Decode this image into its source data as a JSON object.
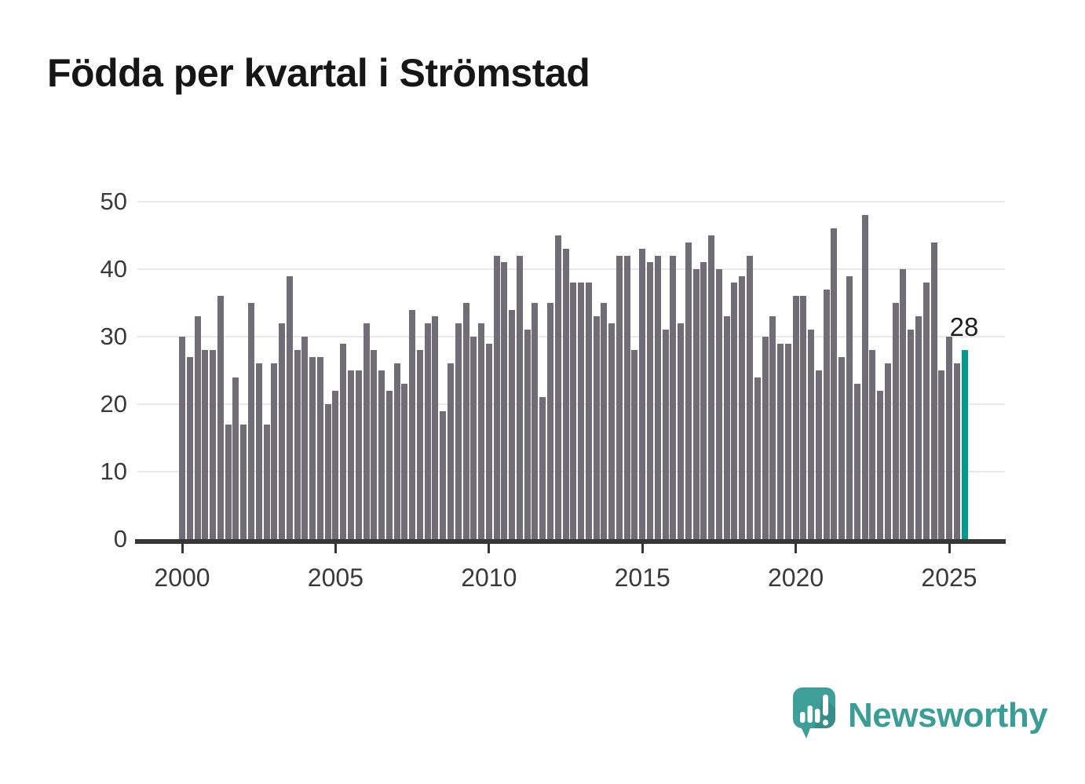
{
  "title": "Födda per kvartal i Strömstad",
  "chart_data": {
    "type": "bar",
    "title": "Födda per kvartal i Strömstad",
    "x_start": "2000-Q1",
    "x_end": "2025-Q3",
    "x_tick_labels": [
      "2000",
      "2005",
      "2010",
      "2015",
      "2020",
      "2025"
    ],
    "y_tick_labels": [
      "0",
      "10",
      "20",
      "30",
      "40",
      "50"
    ],
    "y_ticks": [
      0,
      10,
      20,
      30,
      40,
      50
    ],
    "ylim": [
      0,
      50
    ],
    "grid": true,
    "legend": "none",
    "series": [
      {
        "name": "Födda per kvartal",
        "values": [
          30,
          27,
          33,
          28,
          28,
          36,
          17,
          24,
          17,
          35,
          26,
          17,
          26,
          32,
          39,
          28,
          30,
          27,
          27,
          20,
          22,
          29,
          25,
          25,
          32,
          28,
          25,
          22,
          26,
          23,
          34,
          28,
          32,
          33,
          19,
          26,
          32,
          35,
          30,
          32,
          29,
          42,
          41,
          34,
          42,
          31,
          35,
          21,
          35,
          45,
          43,
          38,
          38,
          38,
          33,
          35,
          32,
          42,
          42,
          28,
          43,
          41,
          42,
          31,
          42,
          32,
          44,
          40,
          41,
          45,
          40,
          33,
          38,
          39,
          42,
          24,
          30,
          33,
          29,
          29,
          36,
          36,
          31,
          25,
          37,
          46,
          27,
          39,
          23,
          48,
          28,
          22,
          26,
          35,
          40,
          31,
          33,
          38,
          44,
          25,
          30,
          26,
          28
        ]
      }
    ],
    "highlight_last": {
      "position": "2025-Q3",
      "value": 28,
      "label": "28"
    },
    "bar_color": "#706d76",
    "highlight_color": "#009a91"
  },
  "annotation": {
    "last_value_label": "28"
  },
  "branding": {
    "logo_text": "Newsworthy"
  },
  "colors": {
    "bar": "#706d76",
    "highlight": "#009a91",
    "axis": "#363636",
    "gridline": "#e9e9e9",
    "tick_text": "#3a3a3a",
    "title_text": "#161616",
    "brand_teal": "#3a9e97"
  }
}
